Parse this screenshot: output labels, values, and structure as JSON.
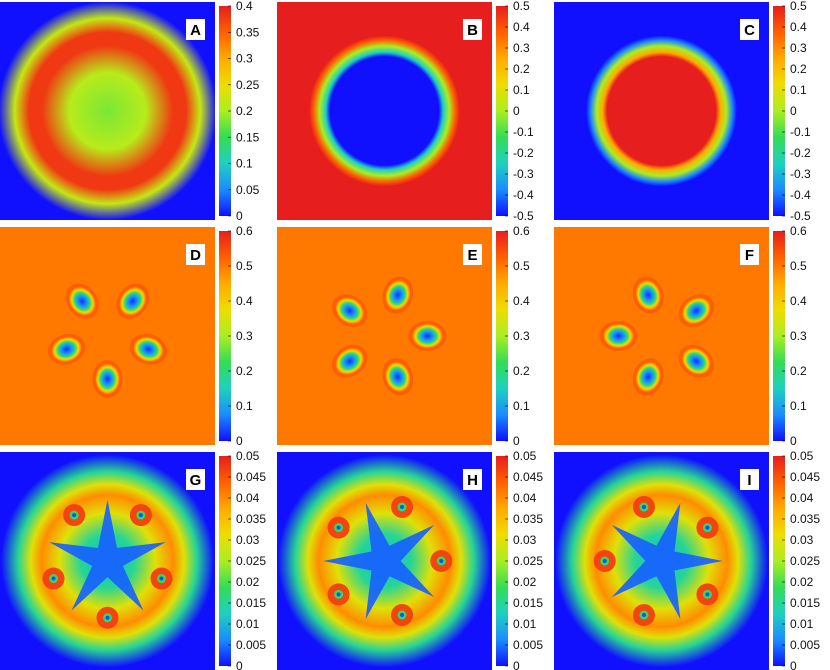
{
  "chart_data": [
    {
      "type": "heatmap",
      "panel": "A",
      "colorbar": {
        "min": 0,
        "max": 0.4,
        "ticks": [
          "0",
          "0.05",
          "0.1",
          "0.15",
          "0.2",
          "0.25",
          "0.3",
          "0.35",
          "0.4"
        ]
      },
      "pattern": {
        "kind": "ring",
        "background": 0.0,
        "core": 0.18,
        "peak": 0.38,
        "ring_radius": 0.35
      }
    },
    {
      "type": "heatmap",
      "panel": "B",
      "colorbar": {
        "min": -0.5,
        "max": 0.5,
        "ticks": [
          "-0.5",
          "-0.4",
          "-0.3",
          "-0.2",
          "-0.1",
          "0",
          "0.1",
          "0.2",
          "0.3",
          "0.4",
          "0.5"
        ]
      },
      "pattern": {
        "kind": "disk",
        "background": 0.5,
        "inside": -0.5,
        "radius": 0.26
      }
    },
    {
      "type": "heatmap",
      "panel": "C",
      "colorbar": {
        "min": -0.5,
        "max": 0.5,
        "ticks": [
          "-0.5",
          "-0.4",
          "-0.3",
          "-0.2",
          "-0.1",
          "0",
          "0.1",
          "0.2",
          "0.3",
          "0.4",
          "0.5"
        ]
      },
      "pattern": {
        "kind": "disk",
        "background": -0.5,
        "inside": 0.5,
        "radius": 0.26
      }
    },
    {
      "type": "heatmap",
      "panel": "D",
      "colorbar": {
        "min": 0,
        "max": 0.6,
        "ticks": [
          "0",
          "0.1",
          "0.2",
          "0.3",
          "0.4",
          "0.5",
          "0.6"
        ]
      },
      "pattern": {
        "kind": "vortices",
        "background": 0.5,
        "minimum": 0.0,
        "count": 5,
        "angle_offset_deg": 0,
        "orbit_radius": 0.2
      }
    },
    {
      "type": "heatmap",
      "panel": "E",
      "colorbar": {
        "min": 0,
        "max": 0.6,
        "ticks": [
          "0",
          "0.1",
          "0.2",
          "0.3",
          "0.4",
          "0.5",
          "0.6"
        ]
      },
      "pattern": {
        "kind": "vortices",
        "background": 0.5,
        "minimum": 0.0,
        "count": 5,
        "angle_offset_deg": -90,
        "orbit_radius": 0.2
      }
    },
    {
      "type": "heatmap",
      "panel": "F",
      "colorbar": {
        "min": 0,
        "max": 0.6,
        "ticks": [
          "0",
          "0.1",
          "0.2",
          "0.3",
          "0.4",
          "0.5",
          "0.6"
        ]
      },
      "pattern": {
        "kind": "vortices",
        "background": 0.5,
        "minimum": 0.0,
        "count": 5,
        "angle_offset_deg": 90,
        "orbit_radius": 0.2
      }
    },
    {
      "type": "heatmap",
      "panel": "G",
      "colorbar": {
        "min": 0,
        "max": 0.05,
        "ticks": [
          "0",
          "0.005",
          "0.01",
          "0.015",
          "0.02",
          "0.025",
          "0.03",
          "0.035",
          "0.04",
          "0.045",
          "0.05"
        ]
      },
      "pattern": {
        "kind": "vortex-ring",
        "background": 0.0,
        "peak": 0.045,
        "count": 5,
        "angle_offset_deg": 0,
        "ring_radius": 0.3
      }
    },
    {
      "type": "heatmap",
      "panel": "H",
      "colorbar": {
        "min": 0,
        "max": 0.05,
        "ticks": [
          "0",
          "0.005",
          "0.01",
          "0.015",
          "0.02",
          "0.025",
          "0.03",
          "0.035",
          "0.04",
          "0.045",
          "0.05"
        ]
      },
      "pattern": {
        "kind": "vortex-ring",
        "background": 0.0,
        "peak": 0.045,
        "count": 5,
        "angle_offset_deg": -90,
        "ring_radius": 0.3
      }
    },
    {
      "type": "heatmap",
      "panel": "I",
      "colorbar": {
        "min": 0,
        "max": 0.05,
        "ticks": [
          "0",
          "0.005",
          "0.01",
          "0.015",
          "0.02",
          "0.025",
          "0.03",
          "0.035",
          "0.04",
          "0.045",
          "0.05"
        ]
      },
      "pattern": {
        "kind": "vortex-ring",
        "background": 0.0,
        "peak": 0.045,
        "count": 5,
        "angle_offset_deg": 90,
        "ring_radius": 0.3
      }
    }
  ],
  "colormap": [
    "#1010ff",
    "#1a8cff",
    "#1fd0c0",
    "#33dd55",
    "#aaee22",
    "#eedd00",
    "#ffaa00",
    "#ff6000",
    "#e61e1e"
  ]
}
